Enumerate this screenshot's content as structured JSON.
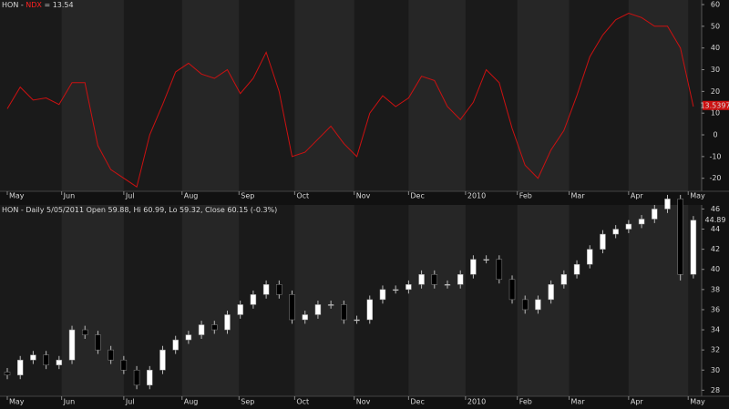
{
  "chart_data": [
    {
      "type": "line",
      "title": "HON - ",
      "title_highlight": "NDX",
      "title_suffix": " = 13.54",
      "color": "#cc1111",
      "highlight_color": "#ff2020",
      "x": [
        0,
        1,
        2,
        3,
        4,
        5,
        6,
        7,
        8,
        9,
        10,
        11,
        12,
        13,
        14,
        15,
        16,
        17,
        18,
        19,
        20,
        21,
        22,
        23,
        24,
        25,
        26,
        27,
        28,
        29,
        30,
        31,
        32,
        33,
        34,
        35,
        36,
        37,
        38,
        39,
        40,
        41,
        42,
        43,
        44,
        45,
        46,
        47,
        48,
        49,
        50,
        51,
        52,
        53
      ],
      "values": [
        12,
        22,
        16,
        17,
        14,
        24,
        24,
        -5,
        -16,
        -20,
        -24,
        0,
        14,
        29,
        33,
        28,
        26,
        30,
        19,
        26,
        38,
        20,
        -10,
        -8,
        -2,
        4,
        -4,
        -10,
        10,
        18,
        13,
        17,
        27,
        25,
        13,
        7,
        15,
        30,
        24,
        3,
        -14,
        -20,
        -7,
        2,
        18,
        36,
        46,
        53,
        56,
        54,
        50,
        50,
        40,
        13
      ],
      "marker": {
        "value": 13.5397,
        "label": "13.5397"
      },
      "xlim": [
        0,
        53.5
      ],
      "ylim": [
        -26,
        62.1
      ],
      "yticks": [
        -20,
        -10,
        0,
        10,
        20,
        30,
        40,
        50,
        60
      ],
      "xticks": [
        {
          "value": 0,
          "label": "May"
        },
        {
          "value": 4.2,
          "label": "Jun"
        },
        {
          "value": 9,
          "label": "Jul"
        },
        {
          "value": 13.5,
          "label": "Aug"
        },
        {
          "value": 17.9,
          "label": "Sep"
        },
        {
          "value": 22.2,
          "label": "Oct"
        },
        {
          "value": 26.8,
          "label": "Nov"
        },
        {
          "value": 31,
          "label": "Dec"
        },
        {
          "value": 35.4,
          "label": "2010"
        },
        {
          "value": 39.4,
          "label": "Feb"
        },
        {
          "value": 43.4,
          "label": "Mar"
        },
        {
          "value": 48,
          "label": "Apr"
        },
        {
          "value": 52.6,
          "label": "May"
        }
      ]
    },
    {
      "type": "candlestick",
      "title": "HON - Daily 5/05/2011 Open 59.88, Hi 60.99, Lo 59.32, Close 60.15 (-0.3%)",
      "x": [
        0,
        1,
        2,
        3,
        4,
        5,
        6,
        7,
        8,
        9,
        10,
        11,
        12,
        13,
        14,
        15,
        16,
        17,
        18,
        19,
        20,
        21,
        22,
        23,
        24,
        25,
        26,
        27,
        28,
        29,
        30,
        31,
        32,
        33,
        34,
        35,
        36,
        37,
        38,
        39,
        40,
        41,
        42,
        43,
        44,
        45,
        46,
        47,
        48,
        49,
        50,
        51,
        52,
        53
      ],
      "open": [
        29.8,
        29.5,
        31,
        31.5,
        30.5,
        31,
        34,
        33.5,
        32,
        31,
        30,
        28.5,
        30,
        32,
        33,
        33.5,
        34.5,
        34,
        35.5,
        36.5,
        37.5,
        38.5,
        37.5,
        35,
        35.5,
        36.5,
        36.5,
        35,
        35,
        37,
        38,
        38,
        38.5,
        39.5,
        38.5,
        38.5,
        39.5,
        41,
        41,
        39,
        37,
        36,
        37,
        38.5,
        39.5,
        40.5,
        42,
        43.5,
        44,
        44.5,
        45,
        46,
        47,
        39.5
      ],
      "high": [
        30.2,
        31.4,
        31.9,
        31.9,
        31.4,
        34.4,
        34.4,
        33.9,
        32.4,
        31.4,
        30.4,
        30.4,
        32.4,
        33.4,
        33.9,
        34.9,
        34.9,
        35.9,
        36.9,
        37.9,
        38.9,
        38.9,
        37.9,
        35.9,
        36.9,
        36.9,
        36.9,
        35.4,
        37.4,
        38.4,
        38.4,
        38.9,
        39.9,
        39.9,
        38.9,
        39.9,
        41.4,
        41.4,
        41.4,
        39.4,
        37.4,
        37.4,
        38.9,
        39.9,
        40.9,
        42.4,
        43.9,
        44.4,
        44.9,
        45.4,
        46.4,
        47.4,
        47.4,
        45.3
      ],
      "low": [
        29.1,
        29.1,
        30.6,
        30.1,
        30.1,
        30.6,
        33.1,
        31.6,
        30.6,
        29.6,
        28.1,
        28.1,
        29.6,
        31.6,
        32.6,
        33.1,
        33.6,
        33.6,
        35.1,
        36.1,
        37.1,
        37.1,
        34.6,
        34.6,
        35.1,
        36.1,
        34.6,
        34.6,
        34.6,
        36.6,
        37.6,
        37.6,
        38.1,
        38.1,
        38.1,
        38.1,
        39.1,
        40.6,
        38.6,
        36.6,
        35.6,
        35.6,
        36.6,
        38.1,
        39.1,
        40.1,
        41.6,
        43.1,
        43.6,
        44.1,
        44.6,
        45.6,
        38.9,
        39.1
      ],
      "close": [
        29.5,
        31,
        31.5,
        30.5,
        31,
        34,
        33.5,
        32,
        31,
        30,
        28.5,
        30,
        32,
        33,
        33.5,
        34.5,
        34,
        35.5,
        36.5,
        37.5,
        38.5,
        37.5,
        35,
        35.5,
        36.5,
        36.5,
        35,
        35,
        37,
        38,
        38,
        38.5,
        39.5,
        38.5,
        38.5,
        39.5,
        41,
        41,
        39,
        37,
        36,
        37,
        38.5,
        39.5,
        40.5,
        42,
        43.5,
        44,
        44.5,
        45,
        46,
        47,
        39.5,
        44.89
      ],
      "up_color": "#ffffff",
      "down_color": "#000000",
      "marker": 44.89,
      "xlim": [
        0,
        53.5
      ],
      "ylim": [
        27.4,
        46.4
      ],
      "yticks": [
        28,
        30,
        32,
        34,
        36,
        38,
        40,
        42,
        44,
        46
      ],
      "xticks": [
        {
          "value": 0,
          "label": "May"
        },
        {
          "value": 4.2,
          "label": "Jun"
        },
        {
          "value": 9,
          "label": "Jul"
        },
        {
          "value": 13.5,
          "label": "Aug"
        },
        {
          "value": 17.9,
          "label": "Sep"
        },
        {
          "value": 22.2,
          "label": "Oct"
        },
        {
          "value": 26.8,
          "label": "Nov"
        },
        {
          "value": 31,
          "label": "Dec"
        },
        {
          "value": 35.4,
          "label": "2010"
        },
        {
          "value": 39.4,
          "label": "Feb"
        },
        {
          "value": 43.4,
          "label": "Mar"
        },
        {
          "value": 48,
          "label": "Apr"
        },
        {
          "value": 52.6,
          "label": "May"
        }
      ]
    }
  ]
}
